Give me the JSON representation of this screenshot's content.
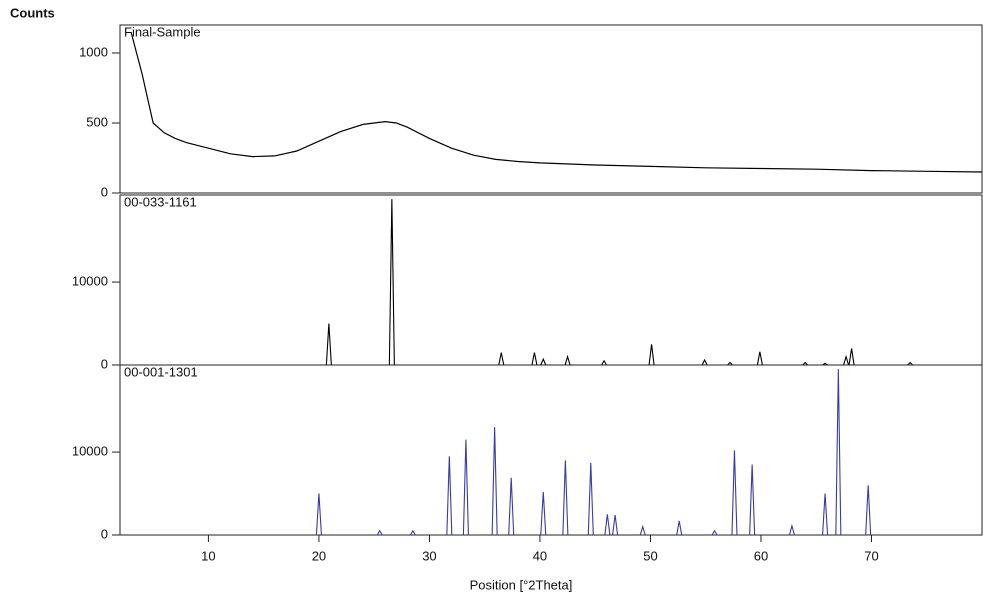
{
  "chart_data": [
    {
      "type": "line",
      "title": "Final-Sample",
      "ylabel": "Counts",
      "color": "#000000",
      "xlim": [
        2,
        80
      ],
      "ylim": [
        0,
        1200
      ],
      "yticks": [
        0,
        500,
        1000
      ],
      "x": [
        3,
        4,
        5,
        6,
        7,
        8,
        10,
        12,
        14,
        16,
        18,
        20,
        22,
        24,
        26,
        27,
        28,
        30,
        32,
        34,
        36,
        38,
        40,
        45,
        50,
        55,
        60,
        65,
        70,
        75,
        80
      ],
      "values": [
        1150,
        850,
        500,
        430,
        390,
        360,
        320,
        280,
        260,
        265,
        300,
        370,
        440,
        490,
        510,
        500,
        470,
        390,
        320,
        270,
        240,
        225,
        215,
        200,
        190,
        180,
        175,
        170,
        160,
        155,
        150
      ]
    },
    {
      "type": "stick",
      "title": "00-033-1161",
      "color": "#000000",
      "xlim": [
        2,
        80
      ],
      "ylim": [
        0,
        20500
      ],
      "yticks": [
        0,
        10000
      ],
      "x": [
        20.9,
        26.6,
        36.5,
        39.5,
        40.3,
        42.5,
        45.8,
        50.1,
        54.9,
        57.2,
        59.9,
        64.0,
        65.8,
        67.7,
        68.2,
        73.5
      ],
      "values": [
        5000,
        20000,
        1500,
        1500,
        700,
        1000,
        500,
        2500,
        600,
        300,
        1600,
        300,
        200,
        1000,
        2000,
        300
      ]
    },
    {
      "type": "stick",
      "title": "00-001-1301",
      "color": "#3a3aa8",
      "xlim": [
        2,
        80
      ],
      "ylim": [
        0,
        20500
      ],
      "yticks": [
        0,
        10000
      ],
      "xticks": [
        10,
        20,
        30,
        40,
        50,
        60,
        70
      ],
      "xlabel": "Position [°2Theta]",
      "x": [
        20.0,
        25.5,
        28.5,
        31.8,
        33.3,
        35.9,
        37.4,
        40.3,
        42.3,
        44.6,
        46.1,
        46.8,
        49.3,
        52.6,
        55.8,
        57.6,
        59.2,
        62.8,
        65.8,
        67.0,
        69.7
      ],
      "values": [
        5000,
        500,
        500,
        9500,
        11500,
        13000,
        6900,
        5200,
        9000,
        8700,
        2500,
        2400,
        1000,
        1700,
        500,
        10200,
        8500,
        1100,
        5000,
        20000,
        6000
      ]
    }
  ]
}
